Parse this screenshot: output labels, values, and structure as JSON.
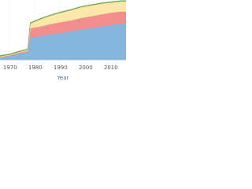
{
  "chart_data": {
    "type": "stacked_area",
    "x_label": "Year",
    "x": [
      1966,
      1970,
      1974,
      1977,
      1978,
      1982,
      1986,
      1990,
      1994,
      1998,
      2002,
      2006,
      2010,
      2014,
      2016
    ],
    "series": [
      {
        "name": "Blue",
        "color": "#86b6dd",
        "values": [
          4,
          7,
          11,
          13,
          37,
          40,
          43,
          45,
          48,
          51,
          53,
          56,
          59,
          61,
          61
        ]
      },
      {
        "name": "Red",
        "color": "#f28e8e",
        "values": [
          1,
          1,
          2,
          2,
          16,
          16,
          17,
          18,
          18,
          19,
          20,
          20,
          20,
          20,
          20
        ]
      },
      {
        "name": "Yellow",
        "color": "#fbe7a8",
        "values": [
          1,
          1,
          1,
          2,
          8,
          12,
          14,
          16,
          17,
          18,
          18,
          18,
          17,
          17,
          17
        ]
      },
      {
        "name": "Green",
        "color": "#6aa84f",
        "values": [
          1,
          1,
          1,
          1,
          1,
          1,
          1,
          1,
          1,
          1,
          1,
          1,
          1,
          1,
          1
        ]
      }
    ],
    "xlim": [
      1966,
      2016
    ],
    "xticks": [
      1970,
      1980,
      1990,
      2000,
      2010
    ],
    "ylim": [
      0,
      100
    ]
  }
}
